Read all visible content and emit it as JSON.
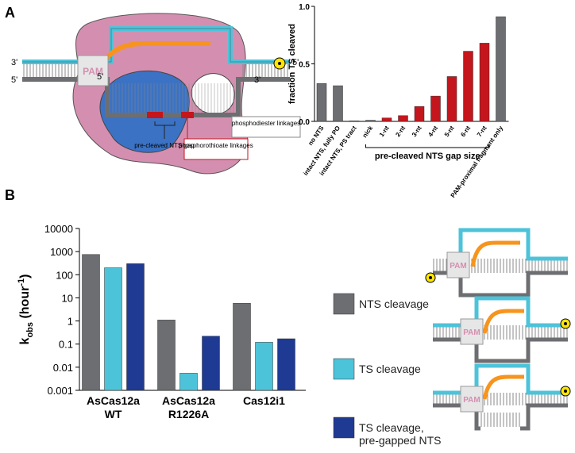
{
  "panel_labels": [
    "A",
    "B"
  ],
  "diagram_a": {
    "end_3_top": "3'",
    "end_5_bottom": "5'",
    "pam": "PAM",
    "rna_5": "5'",
    "end_5_top": "5'",
    "end_3_bottom": "3'",
    "phosphodiester": "phosphodiester linkages",
    "phosphorothioate": "phosphorothioate linkages",
    "gap": "pre-cleaved NTS gap"
  },
  "diagram_b": {
    "pam": "PAM"
  },
  "chart_data": [
    {
      "type": "bar",
      "ylabel": "fraction TS cleaved",
      "categories": [
        "no NTS",
        "intact NTS, fully PO",
        "intact NTS, PS tract",
        "nick",
        "1-nt",
        "2-nt",
        "3-nt",
        "4-nt",
        "5-nt",
        "6-nt",
        "7-nt",
        "PAM-proximal fragment only"
      ],
      "values": [
        0.33,
        0.31,
        0.005,
        0.01,
        0.03,
        0.05,
        0.13,
        0.22,
        0.39,
        0.61,
        0.68,
        0.91
      ],
      "colors": [
        "#6d6e71",
        "#6d6e71",
        "#6d6e71",
        "#6d6e71",
        "#c4161c",
        "#c4161c",
        "#c4161c",
        "#c4161c",
        "#c4161c",
        "#c4161c",
        "#c4161c",
        "#6d6e71"
      ],
      "ylim": [
        0,
        1
      ],
      "yticks": [
        {
          "value": 0,
          "label": "0.0"
        },
        {
          "value": 0.5,
          "label": "0.5"
        },
        {
          "value": 1,
          "label": "1.0"
        }
      ],
      "annotation": "pre-cleaved NTS gap size"
    },
    {
      "type": "bar",
      "log_scale": true,
      "ylabel": {
        "main": "k",
        "sub": "obs",
        "unit": " (hour",
        "sup": "-1",
        "close": ")"
      },
      "categories": [
        [
          "AsCas12a",
          "WT"
        ],
        [
          "AsCas12a",
          "R1226A"
        ],
        [
          "Cas12i1"
        ]
      ],
      "series": [
        {
          "name": "NTS cleavage",
          "color": "#6d6e71",
          "values": [
            750,
            1.1,
            5.8
          ]
        },
        {
          "name": "TS cleavage",
          "color": "#4dc3d9",
          "values": [
            200,
            0.0055,
            0.12
          ]
        },
        {
          "name": "TS cleavage, pre-gapped NTS",
          "color": "#1f3a93",
          "values": [
            300,
            0.22,
            0.17
          ]
        }
      ],
      "ylim": [
        0.001,
        10000
      ],
      "yticks": [
        0.001,
        0.01,
        0.1,
        1,
        10,
        100,
        1000,
        10000
      ]
    }
  ]
}
